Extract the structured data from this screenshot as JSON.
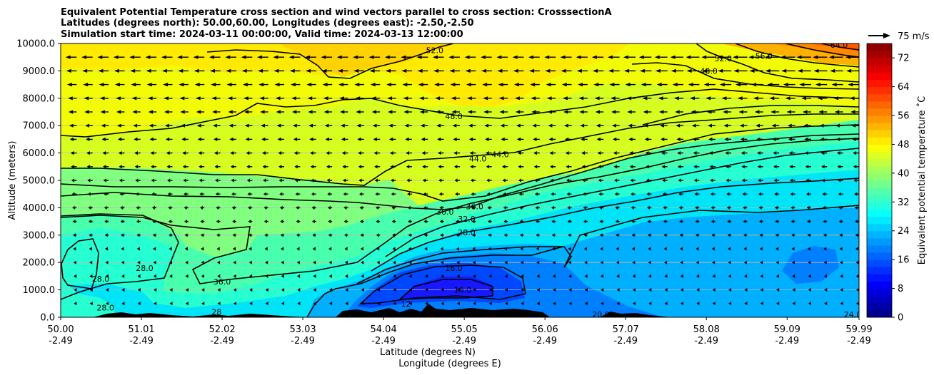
{
  "chart_data": {
    "type": "contour",
    "title_lines": [
      "Equivalent Potential Temperature cross section and wind vectors parallel to cross section: CrosssectionA",
      "Latitudes (degrees north): 50.00,60.00, Longitudes (degrees east): -2.50,-2.50",
      "Simulation start time: 2024-03-11 00:00:00, Valid time: 2024-03-13 12:00:00"
    ],
    "xlabel_lines": [
      "Latitude (degrees N)",
      "Longitude (degrees E)"
    ],
    "ylabel": "Altitude (meters)",
    "x_ticks": [
      {
        "lat": 50.0,
        "lat_label": "50.00",
        "lon_label": "-2.49"
      },
      {
        "lat": 51.01,
        "lat_label": "51.01",
        "lon_label": "-2.49"
      },
      {
        "lat": 52.02,
        "lat_label": "52.02",
        "lon_label": "-2.49"
      },
      {
        "lat": 53.03,
        "lat_label": "53.03",
        "lon_label": "-2.49"
      },
      {
        "lat": 54.04,
        "lat_label": "54.04",
        "lon_label": "-2.49"
      },
      {
        "lat": 55.05,
        "lat_label": "55.05",
        "lon_label": "-2.49"
      },
      {
        "lat": 56.06,
        "lat_label": "56.06",
        "lon_label": "-2.49"
      },
      {
        "lat": 57.07,
        "lat_label": "57.07",
        "lon_label": "-2.49"
      },
      {
        "lat": 58.08,
        "lat_label": "58.08",
        "lon_label": "-2.49"
      },
      {
        "lat": 59.09,
        "lat_label": "59.09",
        "lon_label": "-2.49"
      },
      {
        "lat": 59.99,
        "lat_label": "59.99",
        "lon_label": "-2.49"
      }
    ],
    "xlim": [
      50.0,
      59.99
    ],
    "y_ticks": [
      {
        "value": 0,
        "label": "0.0"
      },
      {
        "value": 1000,
        "label": "1000.0"
      },
      {
        "value": 2000,
        "label": "2000.0"
      },
      {
        "value": 3000,
        "label": "3000.0"
      },
      {
        "value": 4000,
        "label": "4000.0"
      },
      {
        "value": 5000,
        "label": "5000.0"
      },
      {
        "value": 6000,
        "label": "6000.0"
      },
      {
        "value": 7000,
        "label": "7000.0"
      },
      {
        "value": 8000,
        "label": "8000.0"
      },
      {
        "value": 9000,
        "label": "9000.0"
      },
      {
        "value": 10000,
        "label": "10000.0"
      }
    ],
    "ylim": [
      0,
      10000
    ],
    "horizontal_gridlines": true,
    "colorbar": {
      "label": "Equivalent potential temperature $^\\circ$C",
      "label_text": "Equivalent potential temperature ˚C",
      "range": [
        0,
        76
      ],
      "level_step": 2,
      "colormap": "jet",
      "ticks": [
        0,
        8,
        16,
        24,
        32,
        40,
        48,
        56,
        64,
        72
      ],
      "position": "right"
    },
    "quiver_key": {
      "label": "75 m/s",
      "magnitude": 75,
      "position": "top-right"
    },
    "wind_field": {
      "component": "parallel to cross section",
      "general_direction": "westward (toward lower latitude)",
      "speed_ms_by_altitude": [
        {
          "altitude": 500,
          "speed": 9
        },
        {
          "altitude": 2000,
          "speed": 11
        },
        {
          "altitude": 4000,
          "speed": 15
        },
        {
          "altitude": 6000,
          "speed": 21
        },
        {
          "altitude": 8000,
          "speed": 30
        },
        {
          "altitude": 9500,
          "speed": 38
        }
      ],
      "jet_max_speed_ms": 50,
      "jet_core": {
        "lat": 59.0,
        "altitude": 9600
      }
    },
    "contour_labels": [
      {
        "text": "52.0",
        "lat": 54.68,
        "altitude": 9750
      },
      {
        "text": "52.0",
        "lat": 58.29,
        "altitude": 9450
      },
      {
        "text": "56.0",
        "lat": 58.8,
        "altitude": 9550
      },
      {
        "text": "48.0",
        "lat": 58.11,
        "altitude": 9000
      },
      {
        "text": "64.0",
        "lat": 59.74,
        "altitude": 9950
      },
      {
        "text": "48.0",
        "lat": 54.92,
        "altitude": 7350
      },
      {
        "text": "44.0",
        "lat": 55.22,
        "altitude": 5800
      },
      {
        "text": "44.0",
        "lat": 55.5,
        "altitude": 5950
      },
      {
        "text": "36.0",
        "lat": 55.18,
        "altitude": 4050
      },
      {
        "text": "36.0",
        "lat": 54.81,
        "altitude": 3850
      },
      {
        "text": "32.0",
        "lat": 55.08,
        "altitude": 3600
      },
      {
        "text": "28.0",
        "lat": 55.08,
        "altitude": 3100
      },
      {
        "text": "16.0",
        "lat": 54.92,
        "altitude": 1800
      },
      {
        "text": "16.0",
        "lat": 55.03,
        "altitude": 1000
      },
      {
        "text": "28.0",
        "lat": 51.05,
        "altitude": 1800
      },
      {
        "text": "28.0",
        "lat": 50.5,
        "altitude": 1400
      },
      {
        "text": "28.0",
        "lat": 50.56,
        "altitude": 350
      },
      {
        "text": "36.0",
        "lat": 52.02,
        "altitude": 1300
      },
      {
        "text": "28",
        "lat": 51.95,
        "altitude": 200
      },
      {
        "text": "12",
        "lat": 54.32,
        "altitude": 500
      },
      {
        "text": "20.0",
        "lat": 56.76,
        "altitude": 100
      },
      {
        "text": "24.0",
        "lat": 59.91,
        "altitude": 100
      }
    ]
  }
}
